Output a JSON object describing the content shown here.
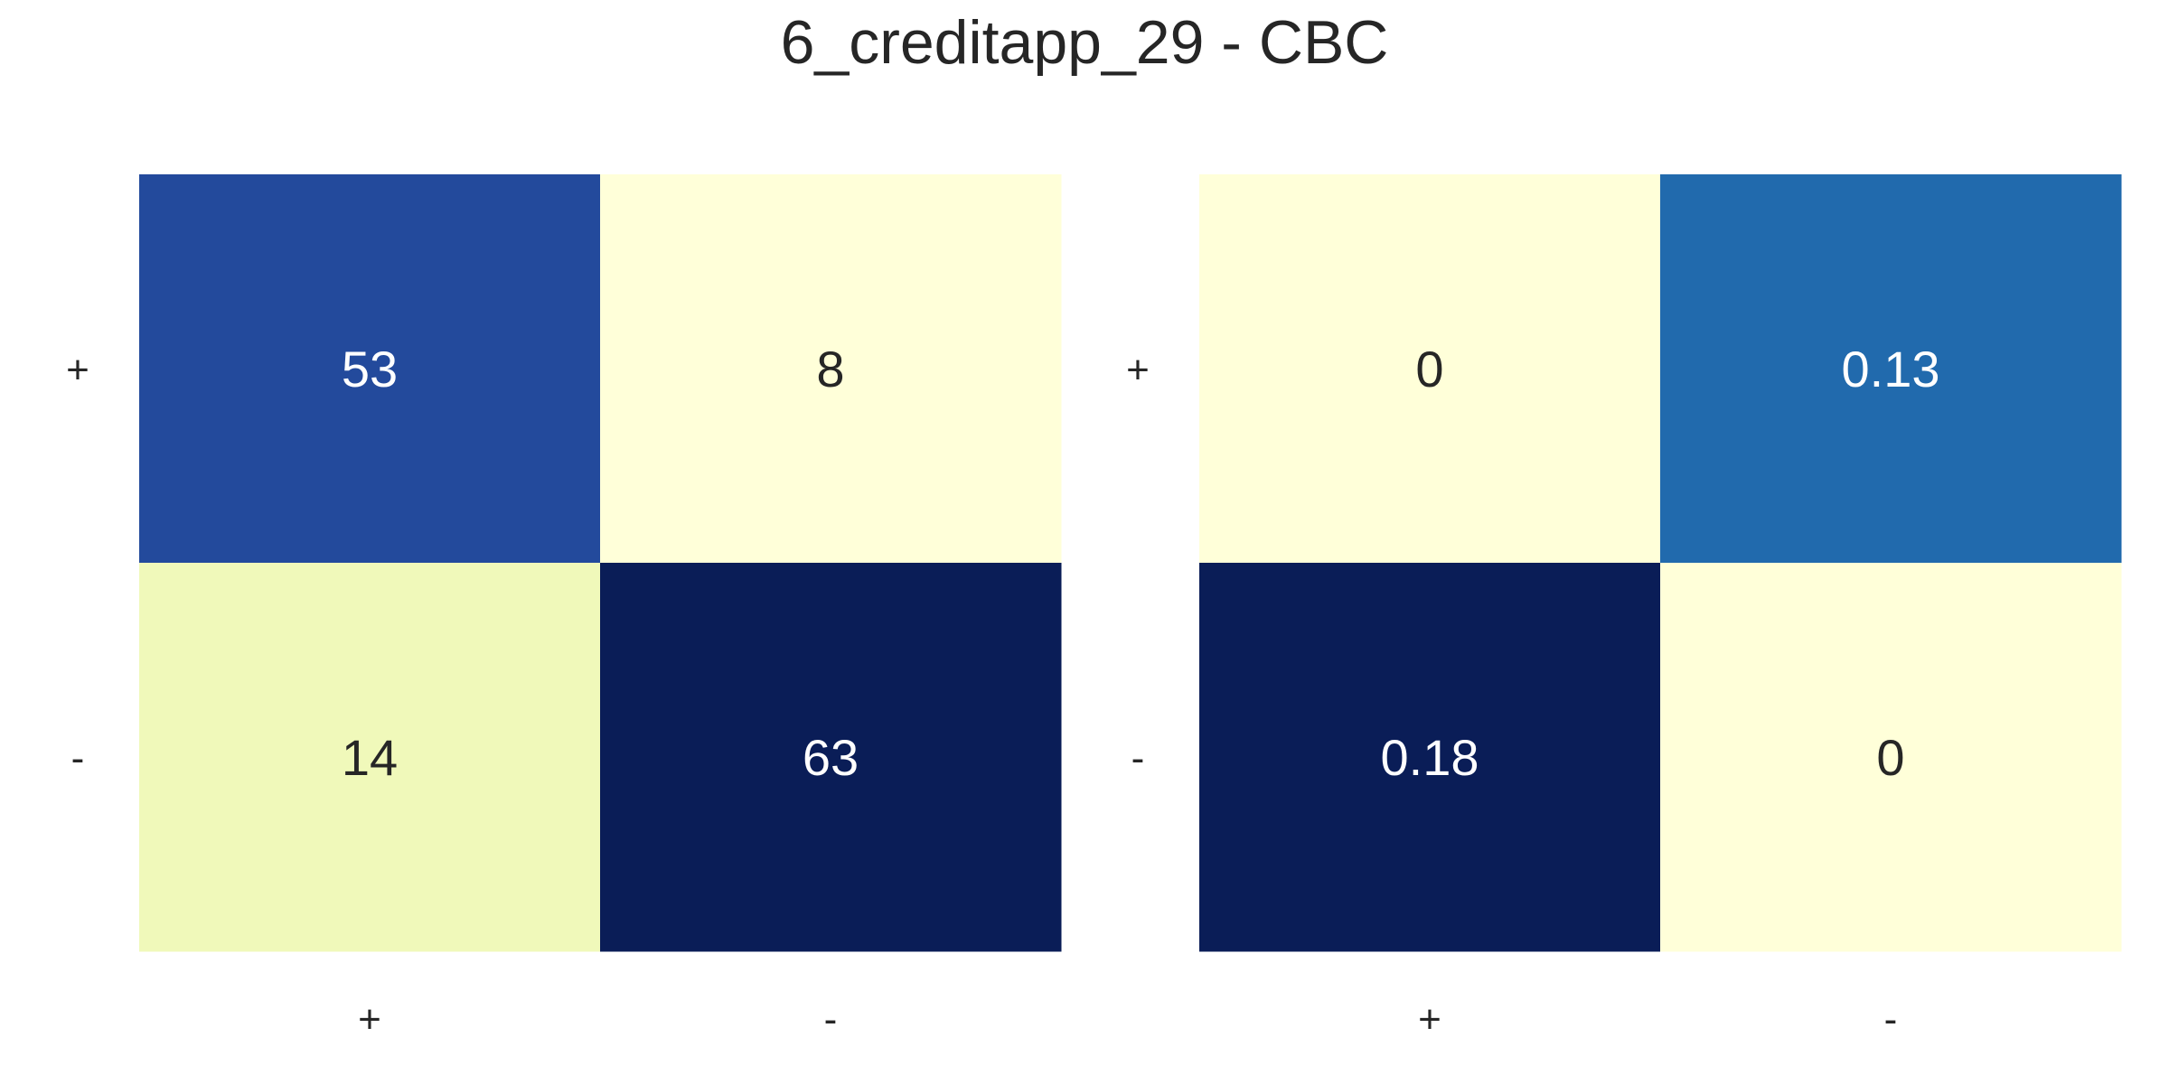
{
  "title": "6_creditapp_29 - CBC",
  "chart_data": [
    {
      "type": "heatmap",
      "row_labels": [
        "+",
        "-"
      ],
      "col_labels": [
        "+",
        "-"
      ],
      "values": [
        [
          53,
          8
        ],
        [
          14,
          63
        ]
      ],
      "cell_text": [
        [
          "53",
          "8"
        ],
        [
          "14",
          "63"
        ]
      ],
      "colormap": "YlGnBu",
      "colors": [
        [
          "#234a9c",
          "#ffffd9"
        ],
        [
          "#f0f9ba",
          "#0a1d57"
        ]
      ],
      "text_colors": [
        [
          "#ffffff",
          "#262626"
        ],
        [
          "#262626",
          "#ffffff"
        ]
      ],
      "colorbar": false
    },
    {
      "type": "heatmap",
      "row_labels": [
        "+",
        "-"
      ],
      "col_labels": [
        "+",
        "-"
      ],
      "values": [
        [
          0,
          0.13
        ],
        [
          0.18,
          0
        ]
      ],
      "cell_text": [
        [
          "0",
          "0.13"
        ],
        [
          "0.18",
          "0"
        ]
      ],
      "colormap": "YlGnBu",
      "colors": [
        [
          "#ffffd9",
          "#216aad"
        ],
        [
          "#0a1d57",
          "#ffffd9"
        ]
      ],
      "text_colors": [
        [
          "#262626",
          "#ffffff"
        ],
        [
          "#ffffff",
          "#262626"
        ]
      ],
      "colorbar": false
    }
  ]
}
